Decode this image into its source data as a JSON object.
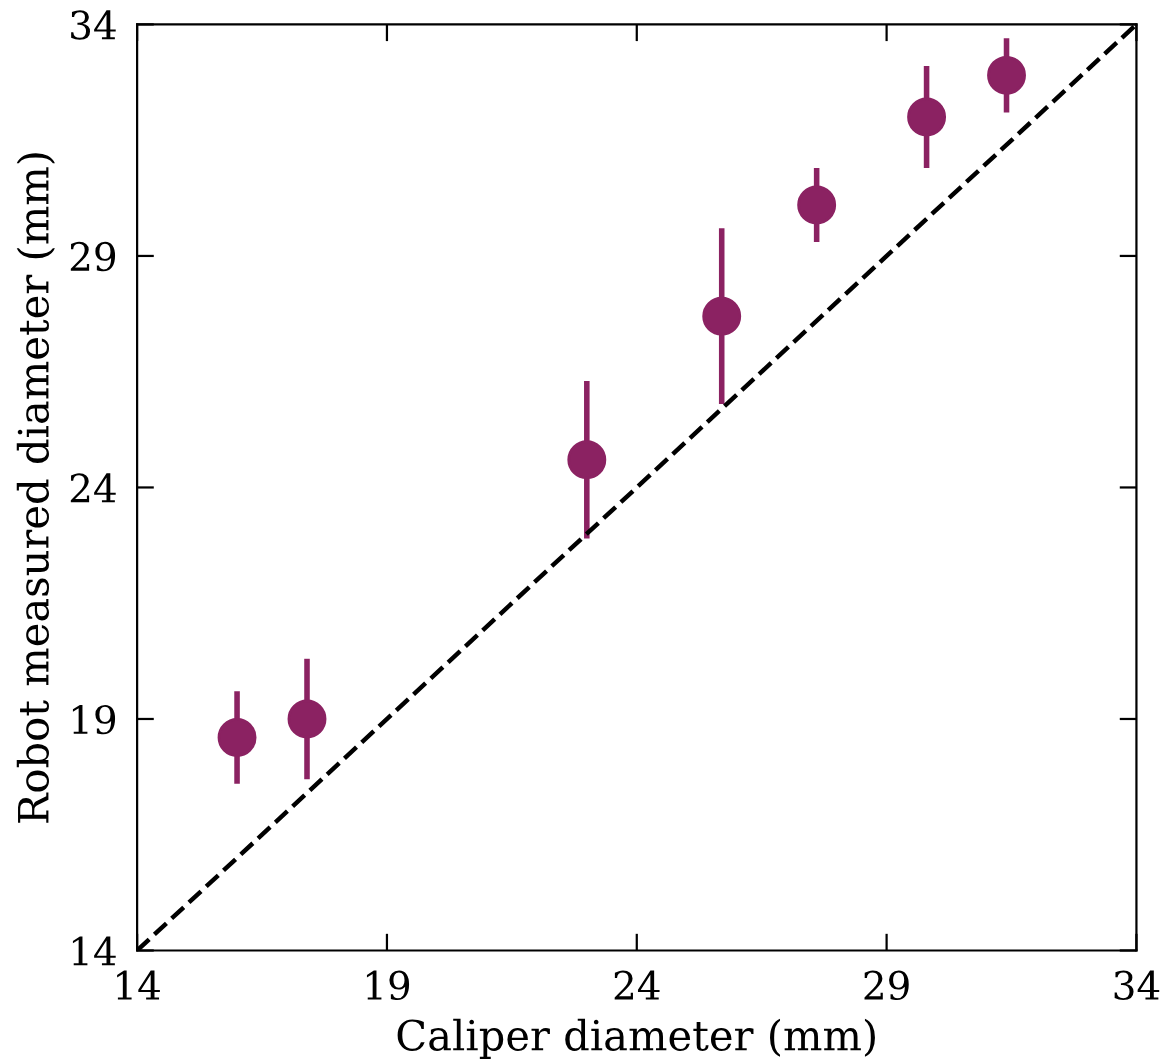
{
  "chart_data": {
    "type": "scatter",
    "xlabel": "Caliper diameter (mm)",
    "ylabel": "Robot measured diameter (mm)",
    "xlim": [
      14,
      34
    ],
    "ylim": [
      14,
      34
    ],
    "xticks": [
      14,
      19,
      24,
      29,
      34
    ],
    "yticks": [
      14,
      19,
      24,
      29,
      34
    ],
    "grid": false,
    "marker": "circle",
    "series": [
      {
        "color": "#8b2262",
        "x": [
          16.0,
          17.4,
          23.0,
          25.7,
          27.6,
          29.8,
          31.4
        ],
        "values": [
          18.6,
          19.0,
          24.6,
          27.7,
          30.1,
          32.0,
          32.9
        ],
        "errors": [
          1.0,
          1.3,
          1.7,
          1.9,
          0.8,
          1.1,
          0.8
        ]
      },
      {
        "type": "line",
        "color": "#000000",
        "line_style": "dashed",
        "marker": "none",
        "x": [
          14,
          34
        ],
        "values": [
          14,
          34
        ]
      }
    ]
  }
}
